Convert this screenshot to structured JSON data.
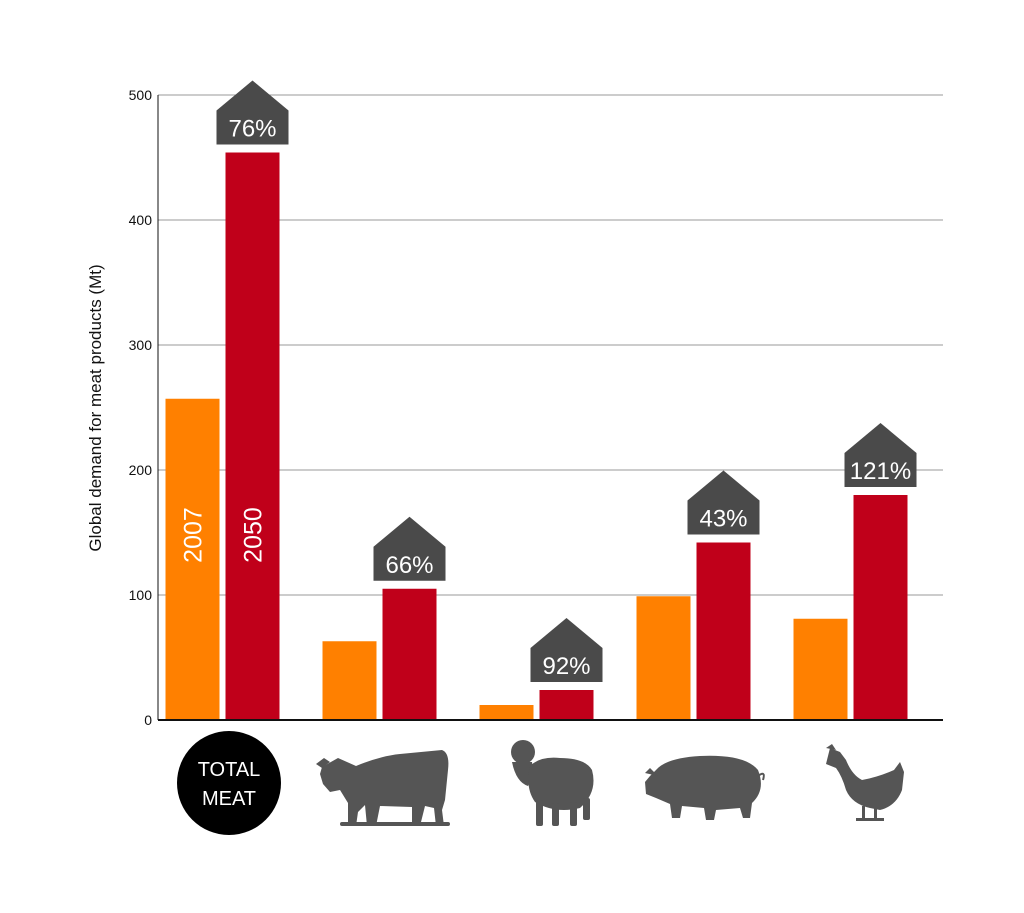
{
  "chart_data": {
    "type": "bar",
    "ylabel": "Global demand for meat products (Mt)",
    "ylim": [
      0,
      500
    ],
    "yticks": [
      0,
      100,
      200,
      300,
      400,
      500
    ],
    "grid": true,
    "categories": [
      "TOTAL MEAT",
      "cattle",
      "sheep",
      "pig",
      "chicken"
    ],
    "series": [
      {
        "name": "2007",
        "color": "#FF8000",
        "values": [
          257,
          63,
          12,
          99,
          81
        ]
      },
      {
        "name": "2050",
        "color": "#C0001A",
        "values": [
          454,
          105,
          24,
          142,
          180
        ]
      }
    ],
    "increase_labels": [
      "76%",
      "66%",
      "92%",
      "43%",
      "121%"
    ],
    "total_label_lines": [
      "TOTAL",
      "MEAT"
    ],
    "category_icons": [
      "total-meat-badge",
      "cow-icon",
      "sheep-icon",
      "pig-icon",
      "chicken-icon"
    ],
    "colors": {
      "label_box": "#4A4A4A",
      "icon": "#555555",
      "badge": "#000000",
      "grid": "#999999"
    }
  }
}
